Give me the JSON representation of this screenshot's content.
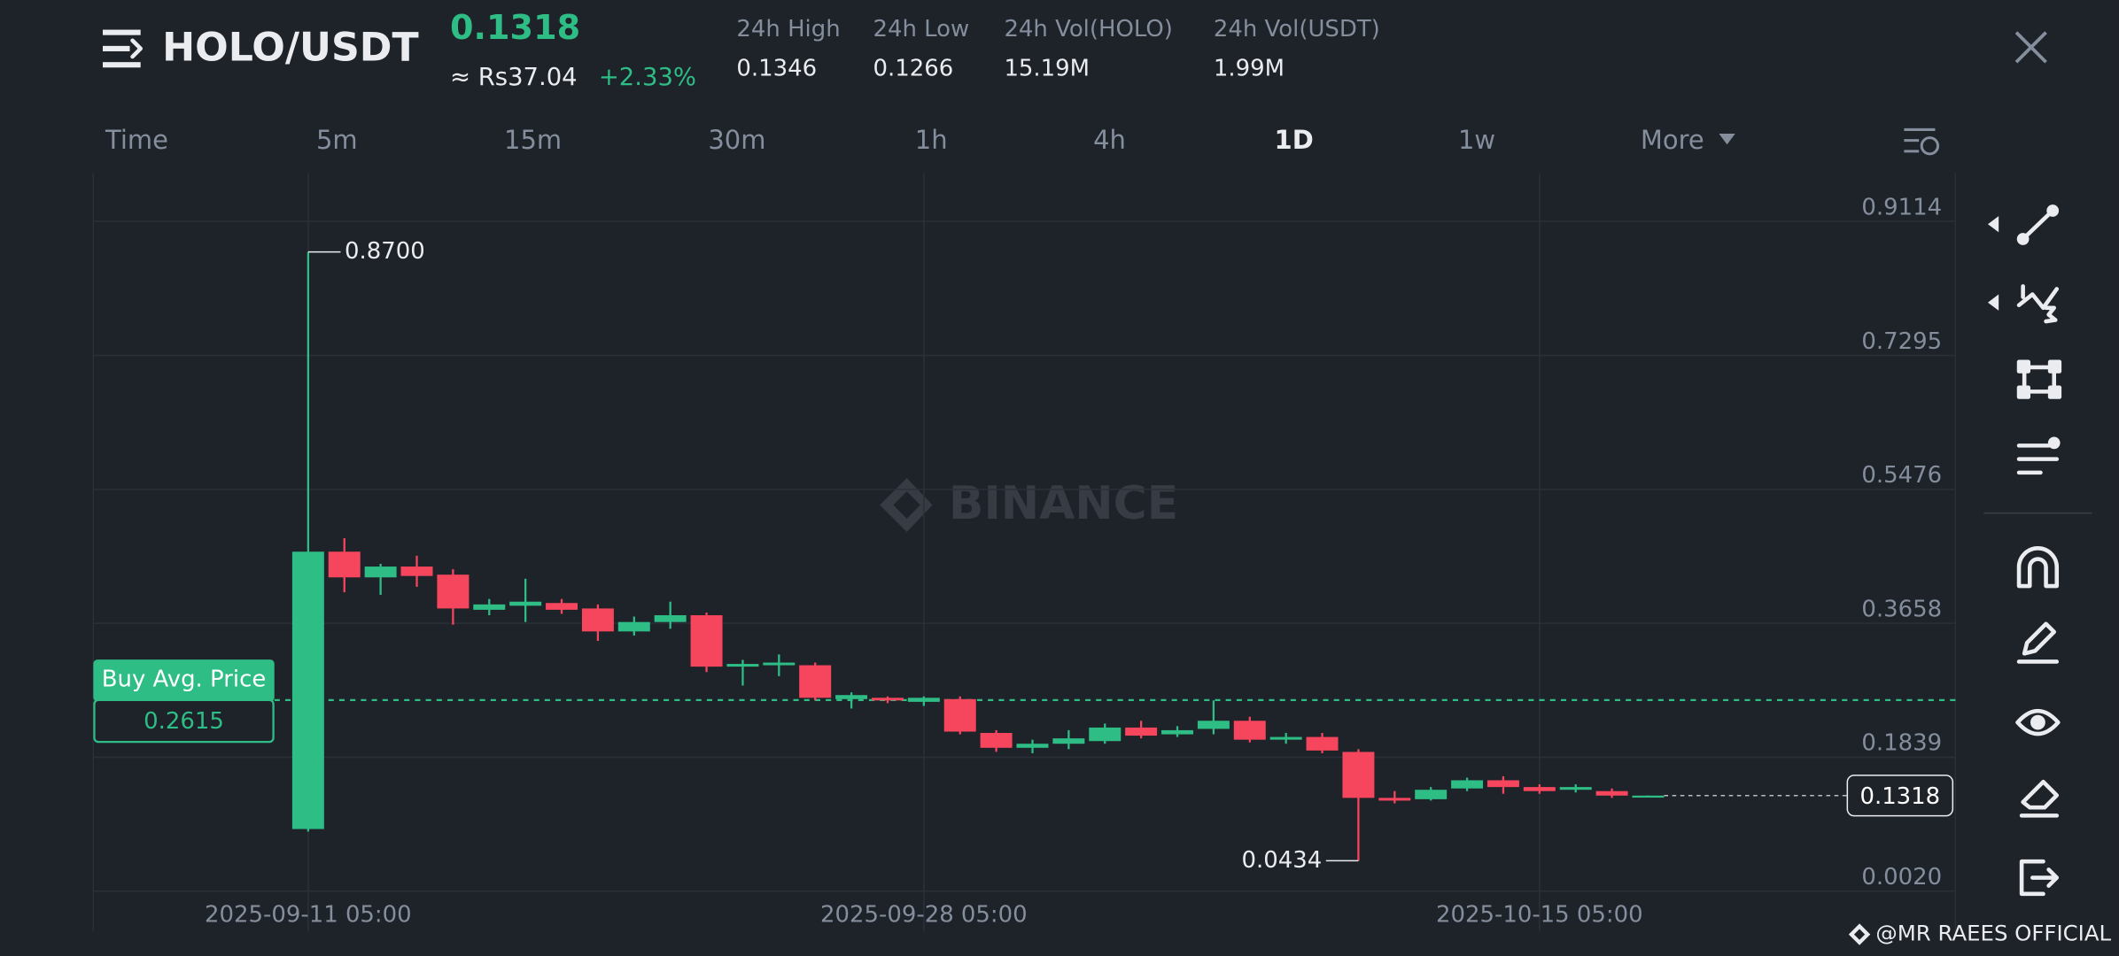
{
  "header": {
    "pair": "HOLO/USDT",
    "price": "0.1318",
    "fiat_price": "≈ Rs37.04",
    "change": "+2.33%",
    "stats": [
      {
        "label": "24h High",
        "value": "0.1346"
      },
      {
        "label": "24h Low",
        "value": "0.1266"
      },
      {
        "label": "24h Vol(HOLO)",
        "value": "15.19M"
      },
      {
        "label": "24h Vol(USDT)",
        "value": "1.99M"
      }
    ]
  },
  "tabs": [
    "Time",
    "5m",
    "15m",
    "30m",
    "1h",
    "4h",
    "1D",
    "1w",
    "More"
  ],
  "watermark": "BINANCE",
  "credit": "@MR RAEES OFFICIAL",
  "chart_data": {
    "type": "candlestick",
    "categories": [
      "2025-09-11 05:00",
      null,
      null,
      null,
      null,
      null,
      null,
      null,
      null,
      null,
      null,
      null,
      null,
      null,
      null,
      null,
      null,
      "2025-09-28 05:00",
      null,
      null,
      null,
      null,
      null,
      null,
      null,
      null,
      null,
      null,
      null,
      null,
      null,
      null,
      null,
      null,
      "2025-10-15 05:00",
      null,
      null,
      null
    ],
    "open": [
      0.0864,
      0.463,
      0.4281,
      0.4428,
      0.4318,
      0.3841,
      0.3896,
      0.3933,
      0.3859,
      0.3547,
      0.3675,
      0.3767,
      0.3069,
      0.3088,
      0.3088,
      0.2628,
      0.2646,
      0.2591,
      0.2628,
      0.2169,
      0.1967,
      0.2022,
      0.2058,
      0.2242,
      0.215,
      0.2224,
      0.2334,
      0.2077,
      0.2114,
      0.1911,
      0.1287,
      0.1269,
      0.1415,
      0.1526,
      0.1434,
      0.1397,
      0.1379,
      0.131
    ],
    "high": [
      0.87,
      0.4814,
      0.4465,
      0.4575,
      0.4392,
      0.3988,
      0.4263,
      0.3988,
      0.3914,
      0.3749,
      0.3951,
      0.3804,
      0.3161,
      0.3235,
      0.3124,
      0.272,
      0.2665,
      0.2665,
      0.2665,
      0.2206,
      0.2077,
      0.2206,
      0.2297,
      0.2334,
      0.2261,
      0.261,
      0.2389,
      0.2169,
      0.2169,
      0.1948,
      0.1379,
      0.1434,
      0.1562,
      0.1581,
      0.1471,
      0.1471,
      0.1415,
      0.132
    ],
    "low": [
      0.083,
      0.4079,
      0.4043,
      0.4153,
      0.3639,
      0.3767,
      0.3675,
      0.3786,
      0.3418,
      0.3491,
      0.3583,
      0.2995,
      0.2812,
      0.294,
      0.261,
      0.25,
      0.2573,
      0.2536,
      0.215,
      0.1913,
      0.1893,
      0.1948,
      0.2022,
      0.2095,
      0.2114,
      0.215,
      0.204,
      0.2022,
      0.1893,
      0.0434,
      0.1213,
      0.125,
      0.1379,
      0.1342,
      0.1342,
      0.136,
      0.1287,
      0.1305
    ],
    "close": [
      0.463,
      0.4281,
      0.4428,
      0.43,
      0.3859,
      0.3914,
      0.3951,
      0.3841,
      0.3547,
      0.3675,
      0.3767,
      0.3069,
      0.3106,
      0.3124,
      0.2646,
      0.2683,
      0.261,
      0.2646,
      0.2187,
      0.1967,
      0.2022,
      0.2095,
      0.2242,
      0.2132,
      0.2206,
      0.2334,
      0.2077,
      0.2114,
      0.193,
      0.1287,
      0.125,
      0.1397,
      0.1526,
      0.1434,
      0.1379,
      0.1434,
      0.1318,
      0.1318
    ],
    "up_color": "#2ebd85",
    "down_color": "#f6465d",
    "ylim": [
      0.002,
      0.9774
    ],
    "yticks": [
      0.9114,
      0.7295,
      0.5476,
      0.3658,
      0.1839,
      {
        "value": 0.002,
        "label": "0.0020"
      }
    ],
    "grid": true,
    "max_label": "0.8700",
    "min_label": "0.0434",
    "buy_avg": {
      "label": "Buy Avg. Price",
      "value": 0.2615
    },
    "last_price": 0.1318
  }
}
